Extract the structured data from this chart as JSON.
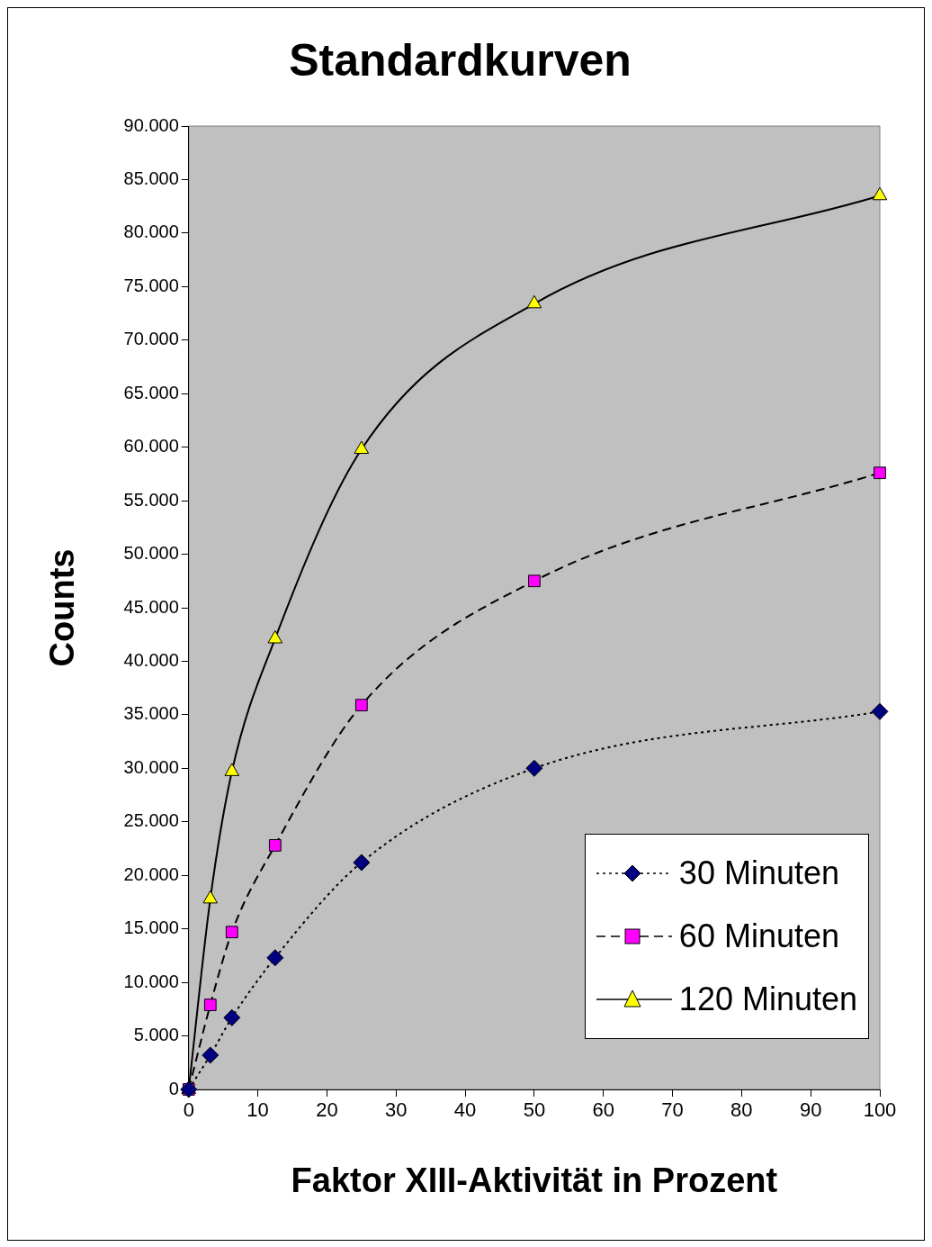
{
  "chart_data": {
    "type": "line",
    "title": "Standardkurven",
    "xlabel": "Faktor XIII-Aktivität in Prozent",
    "ylabel": "Counts",
    "x": [
      0,
      3.125,
      6.25,
      12.5,
      25,
      50,
      100
    ],
    "series": [
      {
        "name": "30 Minuten",
        "color": "#000080",
        "marker": "diamond",
        "line_style": "dotted",
        "values": [
          0,
          3200,
          6700,
          12300,
          21200,
          30000,
          35300
        ]
      },
      {
        "name": "60 Minuten",
        "color": "#ff00ff",
        "marker": "square",
        "line_style": "dashed",
        "values": [
          0,
          7900,
          14700,
          22800,
          35900,
          47500,
          57600
        ]
      },
      {
        "name": "120 Minuten",
        "color": "#ffff00",
        "marker": "triangle",
        "line_style": "solid",
        "values": [
          0,
          17800,
          29700,
          42100,
          59800,
          73400,
          83500
        ]
      }
    ],
    "xlim": [
      0,
      100
    ],
    "xticks": [
      0,
      10,
      20,
      30,
      40,
      50,
      60,
      70,
      80,
      90,
      100
    ],
    "ylim": [
      0,
      90000
    ],
    "yticks": [
      0,
      {
        "value": 5000,
        "label": "5.000"
      },
      {
        "value": 10000,
        "label": "10.000"
      },
      {
        "value": 15000,
        "label": "15.000"
      },
      {
        "value": 20000,
        "label": "20.000"
      },
      {
        "value": 25000,
        "label": "25.000"
      },
      {
        "value": 30000,
        "label": "30.000"
      },
      {
        "value": 35000,
        "label": "35.000"
      },
      {
        "value": 40000,
        "label": "40.000"
      },
      {
        "value": 45000,
        "label": "45.000"
      },
      {
        "value": 50000,
        "label": "50.000"
      },
      {
        "value": 55000,
        "label": "55.000"
      },
      {
        "value": 60000,
        "label": "60.000"
      },
      {
        "value": 65000,
        "label": "65.000"
      },
      {
        "value": 70000,
        "label": "70.000"
      },
      {
        "value": 75000,
        "label": "75.000"
      },
      {
        "value": 80000,
        "label": "80.000"
      },
      {
        "value": 85000,
        "label": "85.000"
      },
      {
        "value": 90000,
        "label": "90.000"
      }
    ],
    "grid": false,
    "legend": "bottom right"
  }
}
